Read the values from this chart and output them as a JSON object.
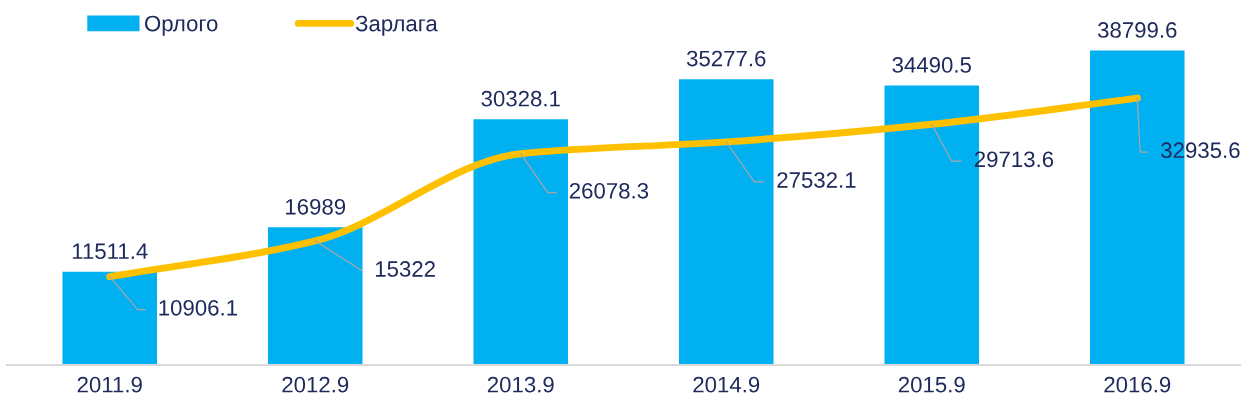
{
  "chart_data": {
    "type": "bar",
    "categories": [
      "2011.9",
      "2012.9",
      "2013.9",
      "2014.9",
      "2015.9",
      "2016.9"
    ],
    "series": [
      {
        "name": "Орлого",
        "color": "#00b0f0",
        "values": [
          11511.4,
          16989,
          30328.1,
          35277.6,
          34490.5,
          38799.6
        ]
      },
      {
        "name": "Зарлага",
        "type": "line",
        "color": "#ffc000",
        "values": [
          10906.1,
          15322,
          26078.3,
          27532.1,
          29713.6,
          32935.6
        ]
      }
    ],
    "data_labels": true,
    "legend": "top left"
  }
}
